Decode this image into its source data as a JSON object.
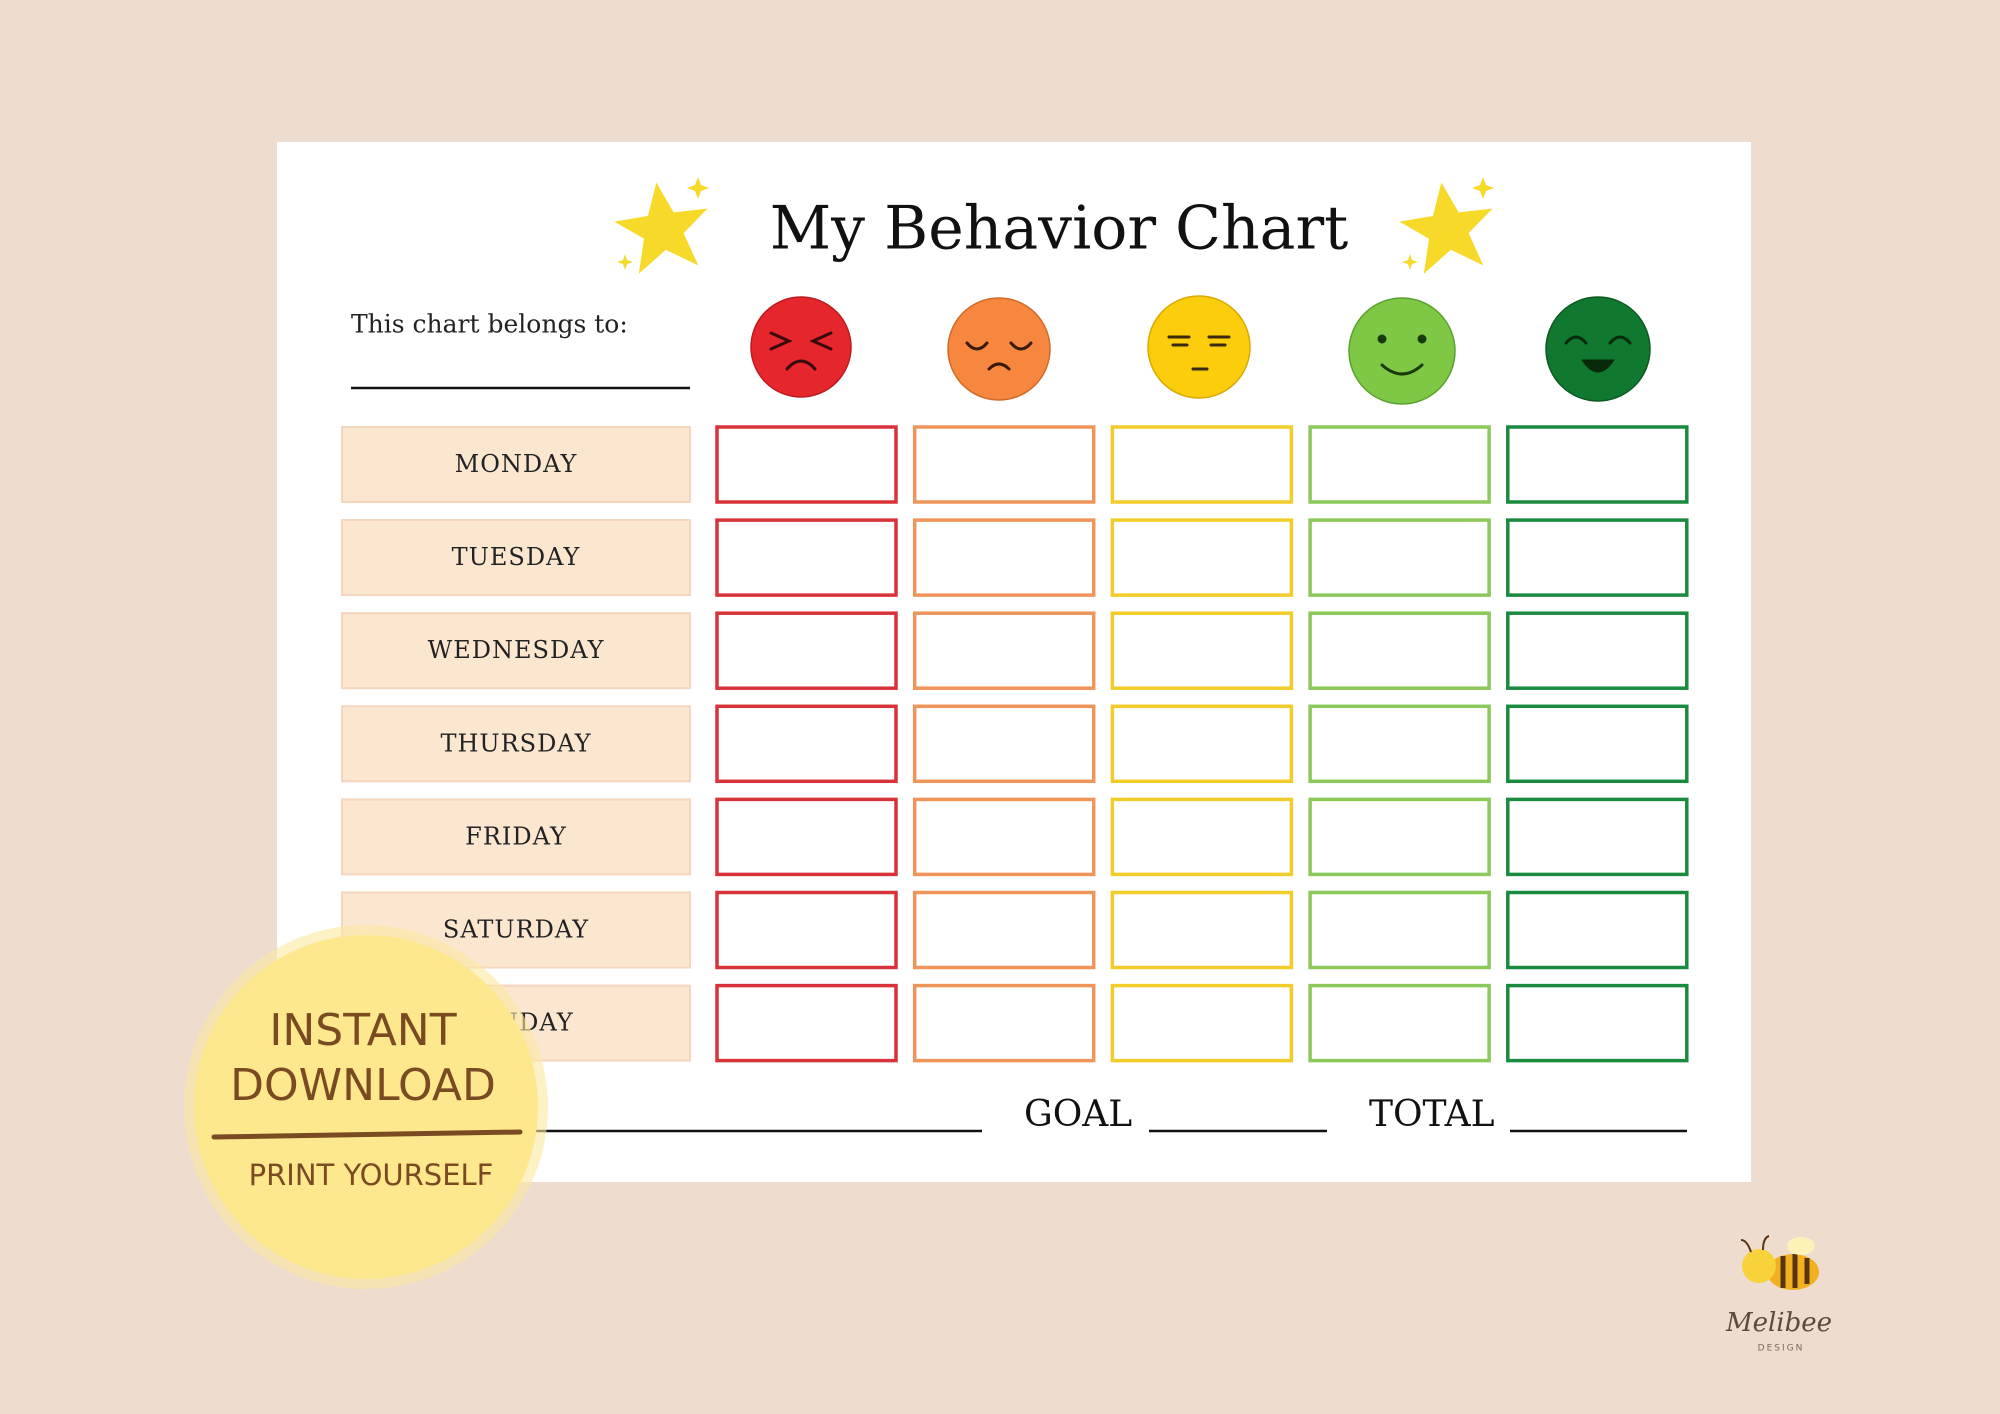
{
  "header": {
    "title": "My Behavior Chart",
    "belongs_label": "This chart belongs to:"
  },
  "days": [
    "MONDAY",
    "TUESDAY",
    "WEDNESDAY",
    "THURSDAY",
    "FRIDAY",
    "SATURDAY",
    "SUNDAY"
  ],
  "footer": {
    "goal": "GOAL",
    "total": "TOTAL"
  },
  "badge": {
    "line1": "INSTANT",
    "line2": "DOWNLOAD",
    "line3": "PRINT YOURSELF"
  },
  "brand": {
    "name": "Melibee",
    "sub": "DESIGN"
  }
}
